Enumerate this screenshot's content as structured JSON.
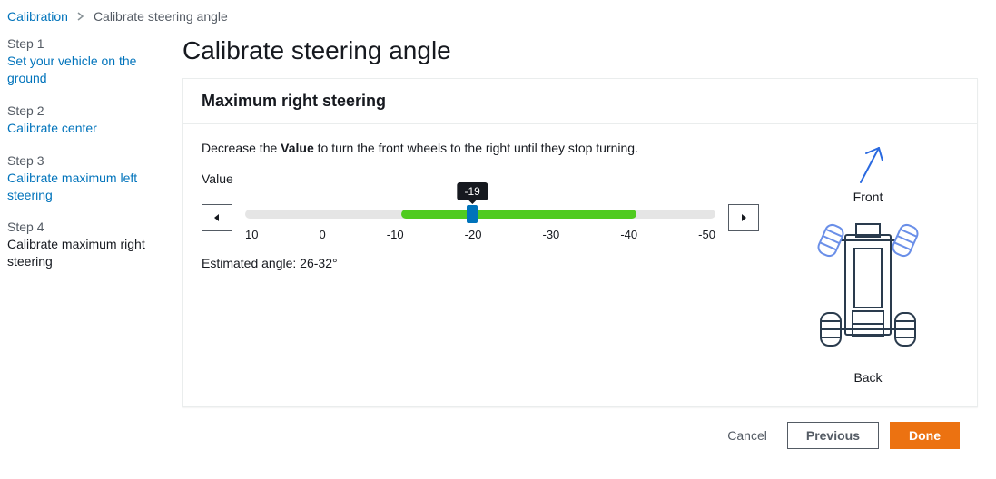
{
  "breadcrumb": {
    "root": "Calibration",
    "current": "Calibrate steering angle"
  },
  "sidebar": {
    "steps": [
      {
        "label": "Step 1",
        "title": "Set your vehicle on the ground",
        "current": false
      },
      {
        "label": "Step 2",
        "title": "Calibrate center",
        "current": false
      },
      {
        "label": "Step 3",
        "title": "Calibrate maximum left steering",
        "current": false
      },
      {
        "label": "Step 4",
        "title": "Calibrate maximum right steering",
        "current": true
      }
    ]
  },
  "main": {
    "title": "Calibrate steering angle",
    "panel_title": "Maximum right steering",
    "instruction_pre": "Decrease the ",
    "instruction_bold": "Value",
    "instruction_post": " to turn the front wheels to the right until they stop turning.",
    "value_label": "Value",
    "slider": {
      "min": 10,
      "max": -50,
      "value": -19,
      "tooltip": "-19",
      "ticks": [
        "10",
        "0",
        "-10",
        "-20",
        "-30",
        "-40",
        "-50"
      ],
      "thumb_percent": 48.3,
      "fill_start_percent": 33.3,
      "fill_end_percent": 83.3,
      "track_bg": "#e5e5e5",
      "fill_color": "#4fcb1f",
      "thumb_color": "#0073bb"
    },
    "estimate_label": "Estimated angle: ",
    "estimate_value": "26-32°",
    "diagram": {
      "front_label": "Front",
      "back_label": "Back",
      "arrow_color": "#2b6ae0",
      "outline_color": "#2a3b4d",
      "wheel_highlight": "#6a8fe8"
    }
  },
  "footer": {
    "cancel": "Cancel",
    "previous": "Previous",
    "done": "Done"
  },
  "colors": {
    "link": "#0073bb",
    "text": "#16191f",
    "muted": "#545b64",
    "primary": "#ec7211"
  }
}
